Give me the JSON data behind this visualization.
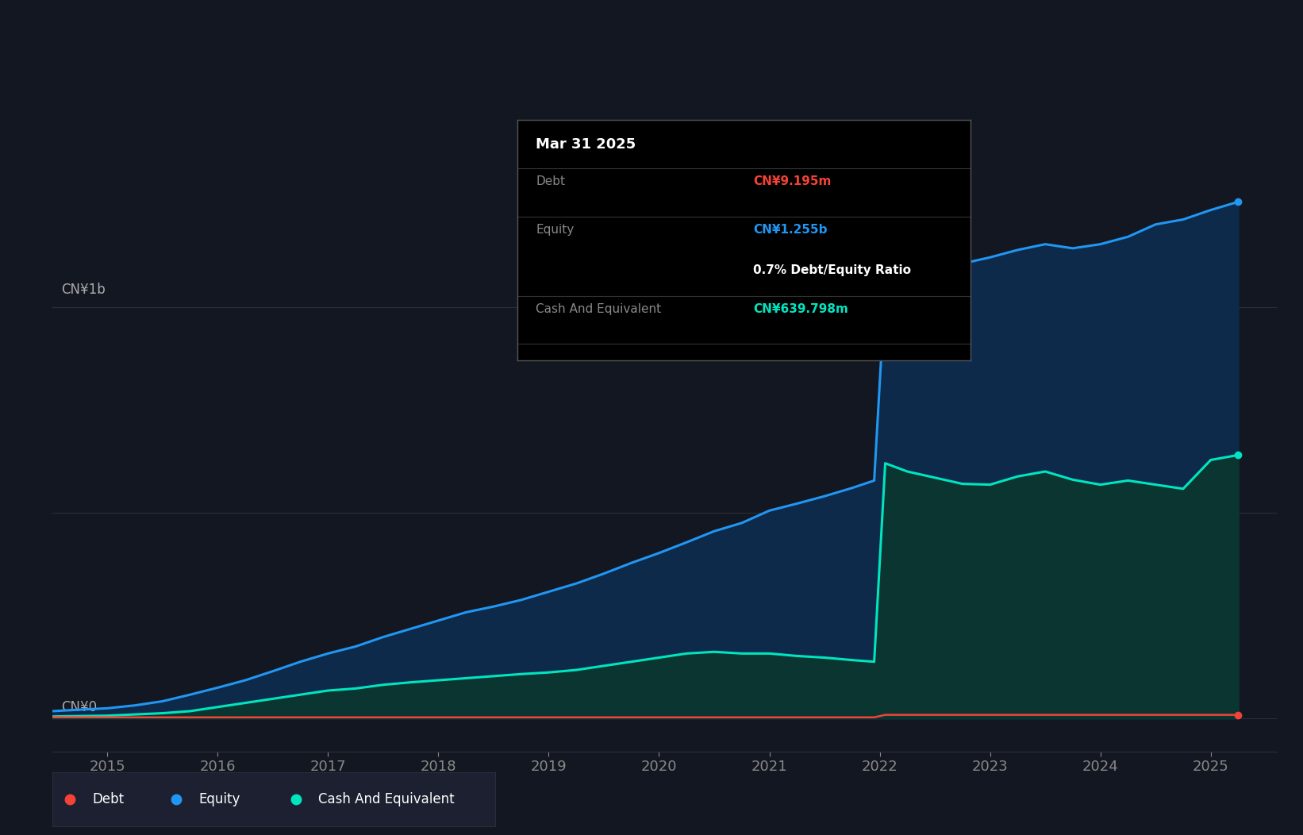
{
  "bg_color": "#131722",
  "plot_bg_color": "#131722",
  "equity_color": "#2196F3",
  "equity_fill_color": "#0d2a4a",
  "cash_color": "#00E5C0",
  "cash_fill_color": "#0a3530",
  "debt_color": "#F44336",
  "ylabel_1b": "CN¥1b",
  "ylabel_0": "CN¥0",
  "x_ticks": [
    2015,
    2016,
    2017,
    2018,
    2019,
    2020,
    2021,
    2022,
    2023,
    2024,
    2025
  ],
  "x_min": 2014.5,
  "x_max": 2025.6,
  "y_min": -0.08,
  "y_max": 1.38,
  "gridline_color": "#2a2e39",
  "tooltip_bg": "#000000",
  "tooltip_title": "Mar 31 2025",
  "tooltip_debt_label": "Debt",
  "tooltip_debt_value": "CN¥9.195m",
  "tooltip_equity_label": "Equity",
  "tooltip_equity_value": "CN¥1.255b",
  "tooltip_ratio": "0.7% Debt/Equity Ratio",
  "tooltip_cash_label": "Cash And Equivalent",
  "tooltip_cash_value": "CN¥639.798m",
  "legend_debt": "Debt",
  "legend_equity": "Equity",
  "legend_cash": "Cash And Equivalent",
  "dates": [
    2014.5,
    2015.0,
    2015.25,
    2015.5,
    2015.75,
    2016.0,
    2016.25,
    2016.5,
    2016.75,
    2017.0,
    2017.25,
    2017.5,
    2017.75,
    2018.0,
    2018.25,
    2018.5,
    2018.75,
    2019.0,
    2019.25,
    2019.5,
    2019.75,
    2020.0,
    2020.25,
    2020.5,
    2020.75,
    2021.0,
    2021.25,
    2021.5,
    2021.75,
    2021.95,
    2022.05,
    2022.25,
    2022.5,
    2022.75,
    2023.0,
    2023.25,
    2023.5,
    2023.75,
    2024.0,
    2024.25,
    2024.5,
    2024.75,
    2025.0,
    2025.25
  ],
  "equity": [
    0.018,
    0.025,
    0.032,
    0.042,
    0.058,
    0.075,
    0.093,
    0.115,
    0.138,
    0.158,
    0.175,
    0.198,
    0.218,
    0.238,
    0.258,
    0.272,
    0.288,
    0.308,
    0.328,
    0.352,
    0.378,
    0.402,
    0.428,
    0.455,
    0.475,
    0.505,
    0.522,
    0.54,
    0.56,
    0.578,
    1.05,
    1.07,
    1.09,
    1.105,
    1.12,
    1.138,
    1.152,
    1.142,
    1.152,
    1.17,
    1.2,
    1.212,
    1.235,
    1.255
  ],
  "cash": [
    0.005,
    0.007,
    0.01,
    0.013,
    0.018,
    0.028,
    0.038,
    0.048,
    0.058,
    0.068,
    0.073,
    0.082,
    0.088,
    0.093,
    0.098,
    0.103,
    0.108,
    0.112,
    0.118,
    0.128,
    0.138,
    0.148,
    0.158,
    0.162,
    0.158,
    0.158,
    0.152,
    0.148,
    0.142,
    0.138,
    0.62,
    0.6,
    0.585,
    0.57,
    0.568,
    0.588,
    0.6,
    0.58,
    0.568,
    0.578,
    0.568,
    0.558,
    0.628,
    0.64
  ],
  "debt": [
    0.003,
    0.003,
    0.003,
    0.003,
    0.003,
    0.003,
    0.003,
    0.003,
    0.003,
    0.003,
    0.003,
    0.003,
    0.003,
    0.003,
    0.003,
    0.003,
    0.003,
    0.003,
    0.003,
    0.003,
    0.003,
    0.003,
    0.003,
    0.003,
    0.003,
    0.003,
    0.003,
    0.003,
    0.003,
    0.003,
    0.009,
    0.009,
    0.009,
    0.009,
    0.009,
    0.009,
    0.009,
    0.009,
    0.009,
    0.009,
    0.009,
    0.009,
    0.009,
    0.009
  ]
}
